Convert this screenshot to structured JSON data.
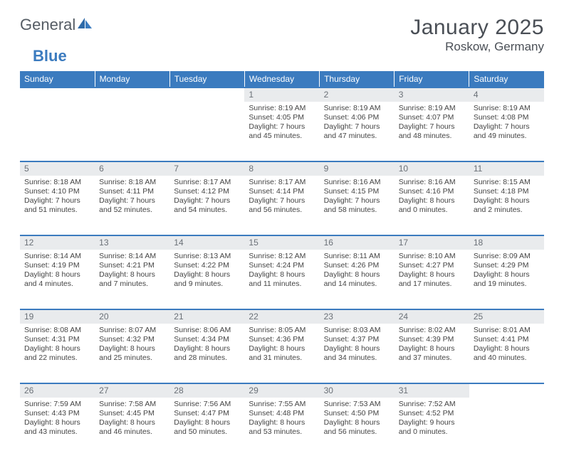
{
  "brand": {
    "word1": "General",
    "word2": "Blue"
  },
  "title": "January 2025",
  "location": "Roskow, Germany",
  "colors": {
    "header_bg": "#3b7bbf",
    "header_text": "#ffffff",
    "daynum_bg": "#e9ebed",
    "rule": "#3b7bbf",
    "body_text": "#444444",
    "title_text": "#4a4f56"
  },
  "weekdays": [
    "Sunday",
    "Monday",
    "Tuesday",
    "Wednesday",
    "Thursday",
    "Friday",
    "Saturday"
  ],
  "weeks": [
    [
      null,
      null,
      null,
      {
        "n": "1",
        "sr": "8:19 AM",
        "ss": "4:05 PM",
        "dl": "7 hours and 45 minutes."
      },
      {
        "n": "2",
        "sr": "8:19 AM",
        "ss": "4:06 PM",
        "dl": "7 hours and 47 minutes."
      },
      {
        "n": "3",
        "sr": "8:19 AM",
        "ss": "4:07 PM",
        "dl": "7 hours and 48 minutes."
      },
      {
        "n": "4",
        "sr": "8:19 AM",
        "ss": "4:08 PM",
        "dl": "7 hours and 49 minutes."
      }
    ],
    [
      {
        "n": "5",
        "sr": "8:18 AM",
        "ss": "4:10 PM",
        "dl": "7 hours and 51 minutes."
      },
      {
        "n": "6",
        "sr": "8:18 AM",
        "ss": "4:11 PM",
        "dl": "7 hours and 52 minutes."
      },
      {
        "n": "7",
        "sr": "8:17 AM",
        "ss": "4:12 PM",
        "dl": "7 hours and 54 minutes."
      },
      {
        "n": "8",
        "sr": "8:17 AM",
        "ss": "4:14 PM",
        "dl": "7 hours and 56 minutes."
      },
      {
        "n": "9",
        "sr": "8:16 AM",
        "ss": "4:15 PM",
        "dl": "7 hours and 58 minutes."
      },
      {
        "n": "10",
        "sr": "8:16 AM",
        "ss": "4:16 PM",
        "dl": "8 hours and 0 minutes."
      },
      {
        "n": "11",
        "sr": "8:15 AM",
        "ss": "4:18 PM",
        "dl": "8 hours and 2 minutes."
      }
    ],
    [
      {
        "n": "12",
        "sr": "8:14 AM",
        "ss": "4:19 PM",
        "dl": "8 hours and 4 minutes."
      },
      {
        "n": "13",
        "sr": "8:14 AM",
        "ss": "4:21 PM",
        "dl": "8 hours and 7 minutes."
      },
      {
        "n": "14",
        "sr": "8:13 AM",
        "ss": "4:22 PM",
        "dl": "8 hours and 9 minutes."
      },
      {
        "n": "15",
        "sr": "8:12 AM",
        "ss": "4:24 PM",
        "dl": "8 hours and 11 minutes."
      },
      {
        "n": "16",
        "sr": "8:11 AM",
        "ss": "4:26 PM",
        "dl": "8 hours and 14 minutes."
      },
      {
        "n": "17",
        "sr": "8:10 AM",
        "ss": "4:27 PM",
        "dl": "8 hours and 17 minutes."
      },
      {
        "n": "18",
        "sr": "8:09 AM",
        "ss": "4:29 PM",
        "dl": "8 hours and 19 minutes."
      }
    ],
    [
      {
        "n": "19",
        "sr": "8:08 AM",
        "ss": "4:31 PM",
        "dl": "8 hours and 22 minutes."
      },
      {
        "n": "20",
        "sr": "8:07 AM",
        "ss": "4:32 PM",
        "dl": "8 hours and 25 minutes."
      },
      {
        "n": "21",
        "sr": "8:06 AM",
        "ss": "4:34 PM",
        "dl": "8 hours and 28 minutes."
      },
      {
        "n": "22",
        "sr": "8:05 AM",
        "ss": "4:36 PM",
        "dl": "8 hours and 31 minutes."
      },
      {
        "n": "23",
        "sr": "8:03 AM",
        "ss": "4:37 PM",
        "dl": "8 hours and 34 minutes."
      },
      {
        "n": "24",
        "sr": "8:02 AM",
        "ss": "4:39 PM",
        "dl": "8 hours and 37 minutes."
      },
      {
        "n": "25",
        "sr": "8:01 AM",
        "ss": "4:41 PM",
        "dl": "8 hours and 40 minutes."
      }
    ],
    [
      {
        "n": "26",
        "sr": "7:59 AM",
        "ss": "4:43 PM",
        "dl": "8 hours and 43 minutes."
      },
      {
        "n": "27",
        "sr": "7:58 AM",
        "ss": "4:45 PM",
        "dl": "8 hours and 46 minutes."
      },
      {
        "n": "28",
        "sr": "7:56 AM",
        "ss": "4:47 PM",
        "dl": "8 hours and 50 minutes."
      },
      {
        "n": "29",
        "sr": "7:55 AM",
        "ss": "4:48 PM",
        "dl": "8 hours and 53 minutes."
      },
      {
        "n": "30",
        "sr": "7:53 AM",
        "ss": "4:50 PM",
        "dl": "8 hours and 56 minutes."
      },
      {
        "n": "31",
        "sr": "7:52 AM",
        "ss": "4:52 PM",
        "dl": "9 hours and 0 minutes."
      },
      null
    ]
  ],
  "labels": {
    "sunrise": "Sunrise: ",
    "sunset": "Sunset: ",
    "daylight": "Daylight: "
  }
}
